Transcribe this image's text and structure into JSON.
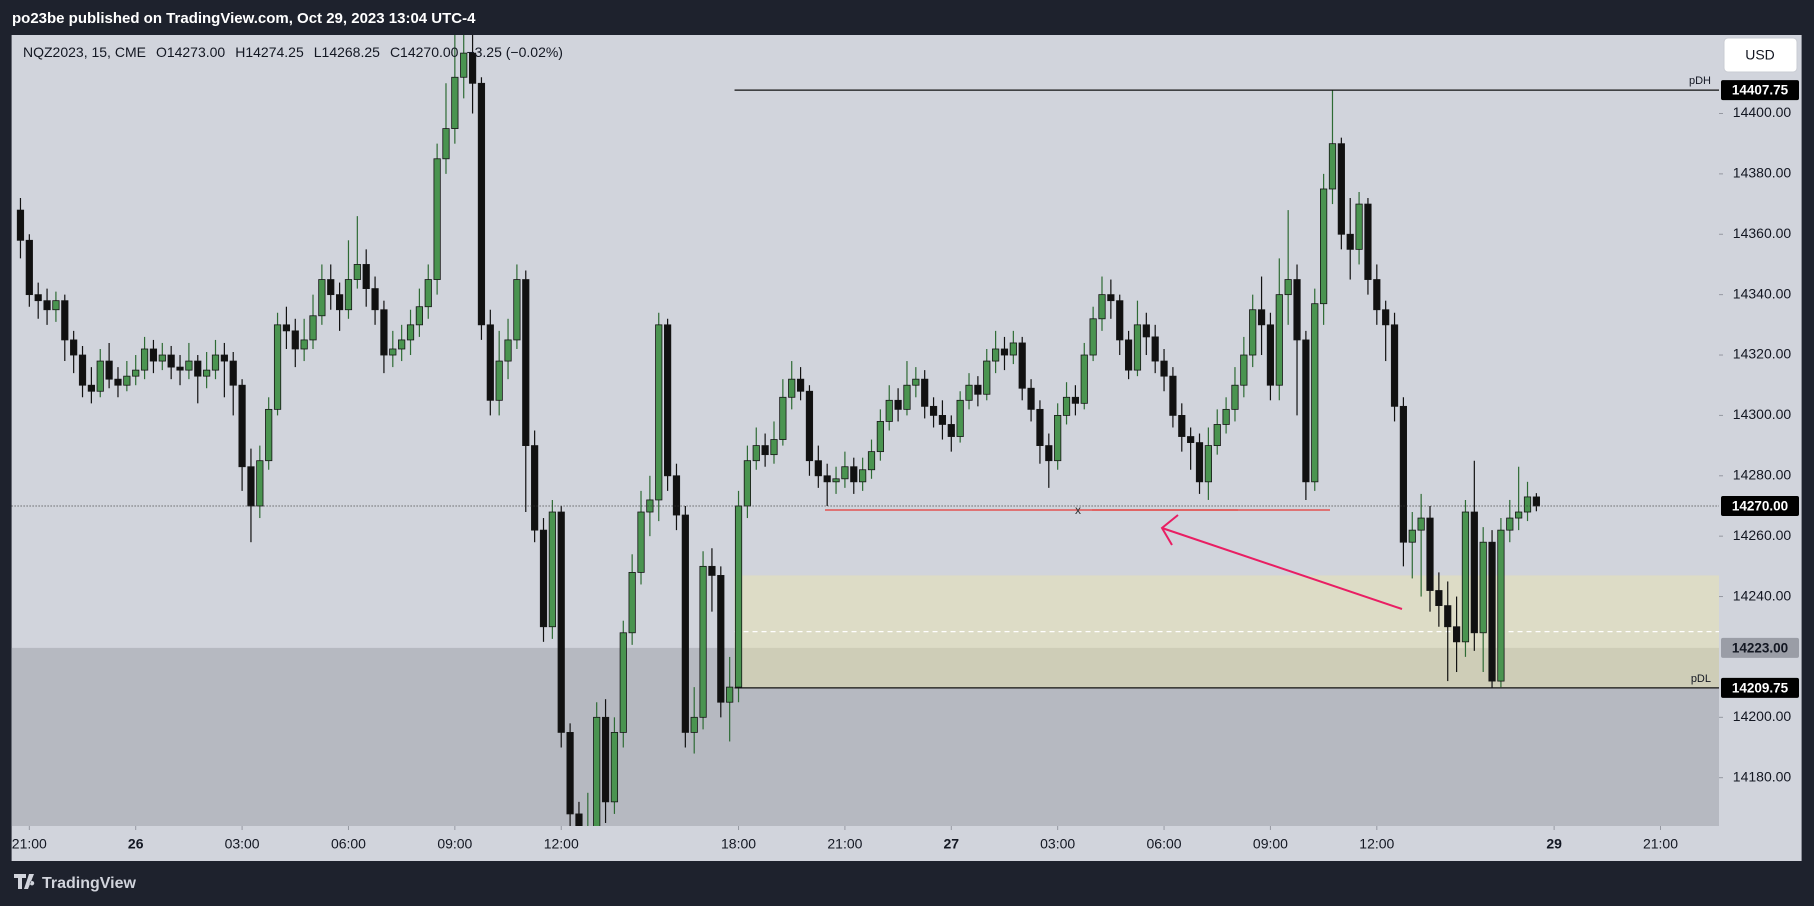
{
  "header": "po23be published on TradingView.com, Oct 29, 2023 13:04 UTC-4",
  "footer": "TradingView",
  "currency_button": "USD",
  "chart_data": {
    "type": "candlestick",
    "legend": {
      "symbol": "NQZ2023, 15, CME",
      "open": "O14273.00",
      "high": "H14274.25",
      "low": "L14268.25",
      "close": "C14270.00",
      "change": "−3.25 (−0.02%)"
    },
    "up_color": "#4a9450",
    "down_color": "#111111",
    "x": [
      -1,
      0,
      1,
      2,
      3,
      4,
      5,
      6,
      7,
      8,
      9,
      10,
      11,
      12,
      13,
      14,
      15,
      16,
      17,
      18,
      19,
      20,
      21,
      22,
      23,
      24,
      25,
      26,
      27,
      28,
      29,
      30,
      31,
      32,
      33,
      34,
      35,
      36,
      37,
      38,
      39,
      40,
      41,
      42,
      43,
      44,
      45,
      46,
      47,
      48,
      49,
      50,
      51,
      52,
      53,
      54,
      55,
      56,
      57,
      58,
      59,
      60,
      61,
      62,
      63,
      64,
      65,
      66,
      67,
      68,
      69,
      70,
      71,
      72,
      73,
      74,
      75,
      76,
      77,
      78,
      79,
      80,
      81,
      82,
      83,
      84,
      85,
      86,
      87,
      88,
      89,
      90,
      91,
      92,
      93,
      94,
      95,
      96,
      97,
      98,
      99,
      100,
      101,
      102,
      103,
      104,
      105,
      106,
      107,
      108,
      109,
      110,
      111,
      112,
      113,
      114,
      115,
      116,
      117,
      118,
      119,
      120,
      121,
      122,
      123,
      124,
      125,
      126,
      127,
      128,
      129,
      130,
      131,
      132,
      133,
      134,
      135,
      136,
      137,
      138,
      139,
      140,
      141,
      142,
      143,
      144,
      145,
      146,
      147,
      148,
      149,
      150,
      151,
      152,
      153,
      154,
      155,
      156,
      157,
      158,
      159,
      160,
      161,
      162,
      163,
      164,
      165,
      166,
      167,
      168,
      169,
      170
    ],
    "open": [
      14368,
      14358,
      14340,
      14338,
      14335,
      14338,
      14325,
      14320,
      14310,
      14308,
      14318,
      14312,
      14310,
      14313,
      14315,
      14322,
      14318,
      14320,
      14316,
      14315,
      14318,
      14313,
      14315,
      14320,
      14318,
      14310,
      14283,
      14270,
      14285,
      14302,
      14330,
      14328,
      14322,
      14325,
      14333,
      14345,
      14340,
      14335,
      14345,
      14350,
      14342,
      14335,
      14320,
      14322,
      14325,
      14330,
      14336,
      14345,
      14385,
      14395,
      14412,
      14420,
      14410,
      14330,
      14305,
      14318,
      14325,
      14345,
      14290,
      14262,
      14230,
      14268,
      14195,
      14168,
      14150,
      14160,
      14200,
      14172,
      14195,
      14228,
      14248,
      14268,
      14272,
      14330,
      14280,
      14267,
      14195,
      14200,
      14250,
      14247,
      14205,
      14210,
      14270,
      14285,
      14290,
      14287,
      14292,
      14306,
      14312,
      14308,
      14285,
      14280,
      14278,
      14279,
      14283,
      14278,
      14282,
      14288,
      14298,
      14305,
      14302,
      14310,
      14312,
      14303,
      14300,
      14297,
      14293,
      14305,
      14310,
      14307,
      14318,
      14322,
      14320,
      14324,
      14309,
      14302,
      14290,
      14285,
      14300,
      14306,
      14304,
      14320,
      14332,
      14340,
      14338,
      14325,
      14315,
      14330,
      14326,
      14318,
      14313,
      14300,
      14293,
      14291,
      14278,
      14290,
      14297,
      14302,
      14310,
      14320,
      14335,
      14330,
      14310,
      14340,
      14345,
      14325,
      14278,
      14337,
      14375,
      14390,
      14360,
      14355,
      14370,
      14345,
      14335,
      14330,
      14303,
      14258,
      14262,
      14266,
      14242,
      14237,
      14230,
      14225,
      14268,
      14228,
      14258,
      14212,
      14262,
      14266,
      14268,
      14273
    ],
    "high": [
      14372,
      14360,
      14344,
      14342,
      14341,
      14340,
      14328,
      14323,
      14316,
      14322,
      14324,
      14316,
      14318,
      14320,
      14326,
      14325,
      14324,
      14323,
      14320,
      14324,
      14320,
      14321,
      14325,
      14324,
      14321,
      14312,
      14289,
      14290,
      14306,
      14334,
      14336,
      14332,
      14332,
      14340,
      14350,
      14350,
      14344,
      14358,
      14366,
      14355,
      14346,
      14338,
      14328,
      14330,
      14335,
      14342,
      14350,
      14390,
      14410,
      14426,
      14426,
      14426,
      14412,
      14335,
      14328,
      14332,
      14350,
      14348,
      14295,
      14266,
      14272,
      14270,
      14198,
      14172,
      14175,
      14205,
      14206,
      14200,
      14232,
      14254,
      14275,
      14280,
      14334,
      14332,
      14284,
      14270,
      14210,
      14255,
      14256,
      14250,
      14220,
      14275,
      14290,
      14296,
      14294,
      14298,
      14312,
      14318,
      14316,
      14310,
      14290,
      14284,
      14283,
      14288,
      14286,
      14286,
      14292,
      14302,
      14310,
      14309,
      14318,
      14316,
      14315,
      14306,
      14305,
      14300,
      14308,
      14314,
      14313,
      14322,
      14328,
      14326,
      14328,
      14326,
      14312,
      14305,
      14294,
      14304,
      14311,
      14310,
      14324,
      14336,
      14346,
      14345,
      14340,
      14328,
      14338,
      14334,
      14330,
      14322,
      14316,
      14304,
      14296,
      14294,
      14296,
      14302,
      14306,
      14316,
      14326,
      14340,
      14346,
      14334,
      14352,
      14368,
      14350,
      14328,
      14342,
      14380,
      14407.75,
      14392,
      14372,
      14374,
      14372,
      14350,
      14338,
      14334,
      14306,
      14268,
      14274,
      14270,
      14248,
      14245,
      14240,
      14272,
      14285,
      14263,
      14262,
      14266,
      14272,
      14283,
      14278,
      14274.25
    ],
    "low": [
      14352,
      14336,
      14332,
      14330,
      14331,
      14318,
      14314,
      14306,
      14304,
      14306,
      14309,
      14306,
      14308,
      14310,
      14312,
      14314,
      14315,
      14312,
      14310,
      14312,
      14304,
      14309,
      14312,
      14306,
      14300,
      14275,
      14258,
      14266,
      14282,
      14300,
      14322,
      14316,
      14318,
      14322,
      14330,
      14335,
      14328,
      14332,
      14342,
      14336,
      14330,
      14314,
      14316,
      14318,
      14320,
      14326,
      14332,
      14340,
      14380,
      14390,
      14405,
      14400,
      14325,
      14300,
      14300,
      14312,
      14322,
      14268,
      14258,
      14225,
      14226,
      14190,
      14162,
      14140,
      14145,
      14155,
      14165,
      14168,
      14190,
      14224,
      14244,
      14260,
      14265,
      14275,
      14262,
      14190,
      14188,
      14196,
      14235,
      14200,
      14192,
      14205,
      14266,
      14282,
      14283,
      14284,
      14290,
      14302,
      14305,
      14280,
      14276,
      14270,
      14274,
      14276,
      14274,
      14275,
      14279,
      14285,
      14295,
      14298,
      14300,
      14306,
      14299,
      14296,
      14292,
      14288,
      14291,
      14302,
      14303,
      14305,
      14314,
      14315,
      14317,
      14305,
      14298,
      14284,
      14276,
      14282,
      14297,
      14300,
      14302,
      14318,
      14328,
      14332,
      14320,
      14312,
      14313,
      14320,
      14314,
      14308,
      14296,
      14288,
      14282,
      14274,
      14272,
      14287,
      14294,
      14298,
      14306,
      14316,
      14320,
      14305,
      14305,
      14330,
      14300,
      14272,
      14275,
      14330,
      14370,
      14355,
      14345,
      14350,
      14340,
      14330,
      14318,
      14298,
      14250,
      14246,
      14240,
      14235,
      14230,
      14212,
      14215,
      14220,
      14222,
      14215,
      14209.75,
      14210,
      14258,
      14262,
      14265,
      14268.25
    ],
    "close": [
      14358,
      14340,
      14338,
      14335,
      14338,
      14325,
      14320,
      14310,
      14308,
      14318,
      14312,
      14310,
      14313,
      14315,
      14322,
      14318,
      14320,
      14316,
      14315,
      14318,
      14313,
      14315,
      14320,
      14318,
      14310,
      14283,
      14270,
      14285,
      14302,
      14330,
      14328,
      14322,
      14325,
      14333,
      14345,
      14340,
      14335,
      14345,
      14350,
      14342,
      14335,
      14320,
      14322,
      14325,
      14330,
      14336,
      14345,
      14385,
      14395,
      14412,
      14420,
      14410,
      14330,
      14305,
      14318,
      14325,
      14345,
      14290,
      14262,
      14230,
      14268,
      14195,
      14168,
      14150,
      14160,
      14200,
      14172,
      14195,
      14228,
      14248,
      14268,
      14272,
      14330,
      14280,
      14267,
      14195,
      14200,
      14250,
      14247,
      14205,
      14210,
      14270,
      14285,
      14290,
      14287,
      14292,
      14306,
      14312,
      14308,
      14285,
      14280,
      14278,
      14279,
      14283,
      14278,
      14282,
      14288,
      14298,
      14305,
      14302,
      14310,
      14312,
      14303,
      14300,
      14297,
      14293,
      14305,
      14310,
      14307,
      14318,
      14322,
      14320,
      14324,
      14309,
      14302,
      14290,
      14285,
      14300,
      14306,
      14304,
      14320,
      14332,
      14340,
      14338,
      14325,
      14315,
      14330,
      14326,
      14318,
      14313,
      14300,
      14293,
      14291,
      14278,
      14290,
      14297,
      14302,
      14310,
      14320,
      14335,
      14330,
      14310,
      14340,
      14345,
      14325,
      14278,
      14337,
      14375,
      14390,
      14360,
      14355,
      14370,
      14345,
      14335,
      14330,
      14303,
      14258,
      14262,
      14266,
      14242,
      14237,
      14230,
      14225,
      14268,
      14228,
      14258,
      14212,
      14262,
      14266,
      14268,
      14273,
      14270
    ],
    "xlim": [
      -2,
      190.6
    ],
    "xticks": [
      {
        "value": 0,
        "label": "21:00"
      },
      {
        "value": 12,
        "label": "26"
      },
      {
        "value": 24,
        "label": "03:00"
      },
      {
        "value": 36,
        "label": "06:00"
      },
      {
        "value": 48,
        "label": "09:00"
      },
      {
        "value": 60,
        "label": "12:00"
      },
      {
        "value": 80,
        "label": "18:00"
      },
      {
        "value": 92,
        "label": "21:00"
      },
      {
        "value": 104,
        "label": "27"
      },
      {
        "value": 116,
        "label": "03:00"
      },
      {
        "value": 128,
        "label": "06:00"
      },
      {
        "value": 140,
        "label": "09:00"
      },
      {
        "value": 152,
        "label": "12:00"
      },
      {
        "value": 172,
        "label": "29"
      },
      {
        "value": 184,
        "label": "21:00"
      }
    ],
    "ylim": [
      14164,
      14426
    ],
    "yticks": [
      {
        "value": 14180,
        "label": "14180.00"
      },
      {
        "value": 14200,
        "label": "14200.00"
      },
      {
        "value": 14240,
        "label": "14240.00"
      },
      {
        "value": 14260,
        "label": "14260.00"
      },
      {
        "value": 14280,
        "label": "14280.00"
      },
      {
        "value": 14300,
        "label": "14300.00"
      },
      {
        "value": 14320,
        "label": "14320.00"
      },
      {
        "value": 14340,
        "label": "14340.00"
      },
      {
        "value": 14360,
        "label": "14360.00"
      },
      {
        "value": 14380,
        "label": "14380.00"
      },
      {
        "value": 14400,
        "label": "14400.00"
      }
    ],
    "levels": [
      {
        "name": "pDH",
        "value": 14407.75
      },
      {
        "name": "pDL",
        "value": 14209.75
      }
    ],
    "last_price": {
      "value": 14270,
      "label": "14270.00"
    },
    "shade_level": {
      "value": 14223,
      "label": "14223.00"
    },
    "zone": {
      "top": 14247,
      "bottom": 14209.75
    }
  }
}
